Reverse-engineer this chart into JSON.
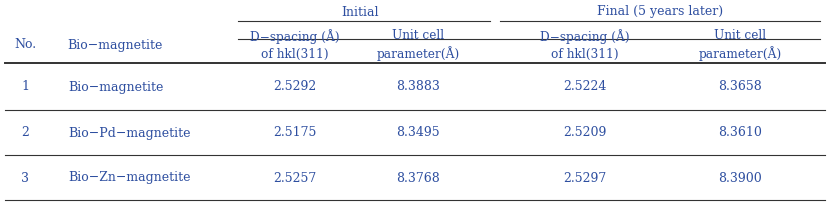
{
  "title_initial": "Initial",
  "title_final": "Final (5 years later)",
  "no_header": "No.",
  "bio_header": "Bio−magnetite",
  "subheaders": [
    "D−spacing (Å)\nof hkl(311)",
    "Unit cell\nparameter(Å)",
    "D−spacing (Å)\nof hkl(311)",
    "Unit cell\nparameter(Å)"
  ],
  "rows": [
    [
      "1",
      "Bio−magnetite",
      "2.5292",
      "8.3883",
      "2.5224",
      "8.3658"
    ],
    [
      "2",
      "Bio−Pd−magnetite",
      "2.5175",
      "8.3495",
      "2.5209",
      "8.3610"
    ],
    [
      "3",
      "Bio−Zn−magnetite",
      "2.5257",
      "8.3768",
      "2.5297",
      "8.3900"
    ]
  ],
  "text_color": "#2e4fa0",
  "line_color": "#333333",
  "bg_color": "#ffffff",
  "font_size": 9.0
}
